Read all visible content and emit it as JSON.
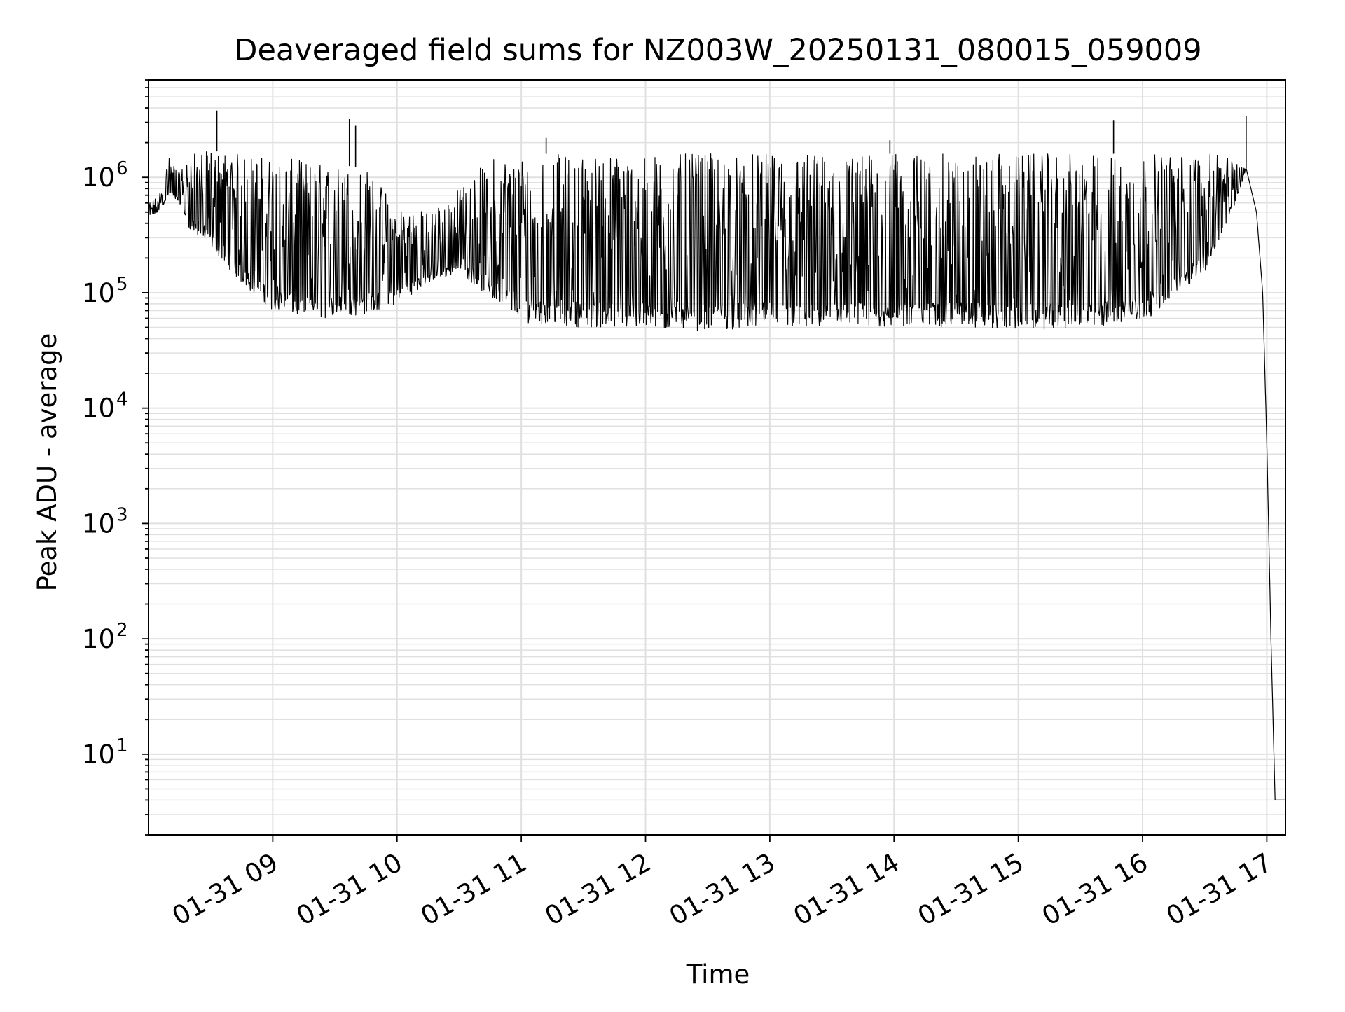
{
  "chart_data": {
    "type": "line",
    "title": "Deaveraged field sums for NZ003W_20250131_080015_059009",
    "xlabel": "Time",
    "ylabel": "Peak ADU - average",
    "x_scale": "time",
    "y_scale": "log",
    "xlim": [
      "2025-01-31 08:00",
      "2025-01-31 17:09"
    ],
    "ylim": [
      2,
      7000000
    ],
    "x_ticks": [
      "2025-01-31 09:00",
      "2025-01-31 10:00",
      "2025-01-31 11:00",
      "2025-01-31 12:00",
      "2025-01-31 13:00",
      "2025-01-31 14:00",
      "2025-01-31 15:00",
      "2025-01-31 16:00",
      "2025-01-31 17:00"
    ],
    "x_tick_labels": [
      "01-31 09",
      "01-31 10",
      "01-31 11",
      "01-31 12",
      "01-31 13",
      "01-31 14",
      "01-31 15",
      "01-31 16",
      "01-31 17"
    ],
    "y_ticks": [
      10,
      100,
      1000,
      10000,
      100000,
      1000000
    ],
    "y_tick_labels": [
      {
        "base": "10",
        "exp": "1"
      },
      {
        "base": "10",
        "exp": "2"
      },
      {
        "base": "10",
        "exp": "3"
      },
      {
        "base": "10",
        "exp": "4"
      },
      {
        "base": "10",
        "exp": "5"
      },
      {
        "base": "10",
        "exp": "6"
      }
    ],
    "grid": true,
    "line_color": "#000000",
    "grid_color": "#e0e0e0",
    "series": [
      {
        "x": [
          "2025-01-31 08:00",
          "2025-01-31 08:05",
          "2025-01-31 08:10",
          "2025-01-31 08:15",
          "2025-01-31 08:20",
          "2025-01-31 08:30",
          "2025-01-31 08:45",
          "2025-01-31 09:00",
          "2025-01-31 09:15",
          "2025-01-31 09:30",
          "2025-01-31 09:45",
          "2025-01-31 10:00",
          "2025-01-31 10:15",
          "2025-01-31 10:30",
          "2025-01-31 10:45",
          "2025-01-31 11:00",
          "2025-01-31 11:30",
          "2025-01-31 12:00",
          "2025-01-31 12:30",
          "2025-01-31 13:00",
          "2025-01-31 13:30",
          "2025-01-31 14:00",
          "2025-01-31 14:30",
          "2025-01-31 15:00",
          "2025-01-31 15:30",
          "2025-01-31 16:00",
          "2025-01-31 16:30",
          "2025-01-31 16:45",
          "2025-01-31 16:50",
          "2025-01-31 16:55",
          "2025-01-31 16:58",
          "2025-01-31 17:00",
          "2025-01-31 17:02",
          "2025-01-31 17:04",
          "2025-01-31 17:06",
          "2025-01-31 17:08",
          "2025-01-31 17:09"
        ],
        "low": [
          450000,
          500000,
          700000,
          600000,
          350000,
          250000,
          120000,
          70000,
          60000,
          60000,
          65000,
          80000,
          120000,
          150000,
          90000,
          55000,
          50000,
          48000,
          47000,
          50000,
          48000,
          50000,
          50000,
          48000,
          48000,
          55000,
          150000,
          600000,
          1200000,
          500000,
          100000,
          5000,
          100,
          4,
          4,
          4,
          4
        ],
        "high": [
          600000,
          700000,
          1500000,
          1100000,
          1600000,
          1700000,
          1600000,
          1500000,
          1400000,
          1300000,
          1200000,
          600000,
          500000,
          800000,
          1500000,
          1600000,
          1600000,
          1600000,
          1600000,
          1600000,
          1600000,
          1600000,
          1600000,
          1600000,
          1600000,
          1600000,
          1600000,
          1500000,
          1200000,
          500000,
          100000,
          5000,
          100,
          4,
          4,
          4,
          4
        ]
      }
    ],
    "spikes": [
      {
        "x": "2025-01-31 08:33",
        "y": 3800000
      },
      {
        "x": "2025-01-31 09:37",
        "y": 3200000
      },
      {
        "x": "2025-01-31 09:40",
        "y": 2800000
      },
      {
        "x": "2025-01-31 11:12",
        "y": 2200000
      },
      {
        "x": "2025-01-31 13:58",
        "y": 2100000
      },
      {
        "x": "2025-01-31 15:46",
        "y": 3100000
      },
      {
        "x": "2025-01-31 16:50",
        "y": 3400000
      }
    ]
  }
}
